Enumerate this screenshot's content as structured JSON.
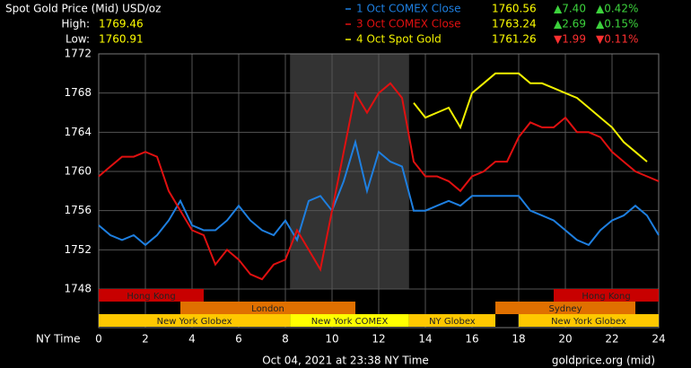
{
  "chart_data": {
    "type": "line",
    "title": "Spot Gold Price (Mid) USD/oz",
    "high_label": "High:",
    "high": "1769.46",
    "low_label": "Low:",
    "low": "1760.91",
    "x_label": "NY Time",
    "footer": "Oct 04, 2021 at 23:38 NY Time",
    "source": "goldprice.org (mid)",
    "xlim": [
      0,
      24
    ],
    "xticks": [
      0,
      2,
      4,
      6,
      8,
      10,
      12,
      14,
      16,
      18,
      20,
      22,
      24
    ],
    "ylim": [
      1748,
      1772
    ],
    "yticks": [
      1748,
      1752,
      1756,
      1760,
      1764,
      1768,
      1772
    ],
    "grid": true,
    "x": [
      0,
      0.5,
      1,
      1.5,
      2,
      2.5,
      3,
      3.5,
      4,
      4.5,
      5,
      5.5,
      6,
      6.5,
      7,
      7.5,
      8,
      8.5,
      9,
      9.5,
      10,
      10.5,
      11,
      11.5,
      12,
      12.5,
      13,
      13.5,
      14,
      14.5,
      15,
      15.5,
      16,
      16.5,
      17,
      17.5,
      18,
      18.5,
      19,
      19.5,
      20,
      20.5,
      21,
      21.5,
      22,
      22.5,
      23,
      23.5,
      24
    ],
    "series": [
      {
        "name": "1 Oct COMEX Close",
        "color": "#1e7fe0",
        "price": "1760.56",
        "change": "▲7.40",
        "percent": "▲0.42%",
        "change_color": "#3cd23c",
        "values": [
          1754.5,
          1753.5,
          1753,
          1753.5,
          1752.5,
          1753.5,
          1755,
          1757,
          1754.5,
          1754,
          1754,
          1755,
          1756.5,
          1755,
          1754,
          1753.5,
          1755,
          1753,
          1757,
          1757.5,
          1756,
          1759,
          1763,
          1758,
          1762,
          1761,
          1760.5,
          1756,
          1756,
          1756.5,
          1757,
          1756.5,
          1757.5,
          1757.5,
          1757.5,
          1757.5,
          1757.5,
          1756,
          1755.5,
          1755,
          1754,
          1753,
          1752.5,
          1754,
          1755,
          1755.5,
          1756.5,
          1755.5,
          1753.5
        ]
      },
      {
        "name": "3 Oct COMEX Close",
        "color": "#e01010",
        "price": "1763.24",
        "change": "▲2.69",
        "percent": "▲0.15%",
        "change_color": "#3cd23c",
        "values": [
          1759.5,
          1760.5,
          1761.5,
          1761.5,
          1762,
          1761.5,
          1758,
          1756,
          1754,
          1753.5,
          1750.5,
          1752,
          1751,
          1749.5,
          1749,
          1750.5,
          1751,
          1754,
          1752,
          1750,
          1756,
          1762,
          1768,
          1766,
          1768,
          1769,
          1767.5,
          1761,
          1759.5,
          1759.5,
          1759,
          1758,
          1759.5,
          1760,
          1761,
          1761,
          1763.5,
          1765,
          1764.5,
          1764.5,
          1765.5,
          1764,
          1764,
          1763.5,
          1762,
          1761,
          1760,
          1759.5,
          1759
        ]
      },
      {
        "name": "4 Oct Spot Gold",
        "color": "#f0f000",
        "price": "1761.26",
        "change": "▼1.99",
        "percent": "▼0.11%",
        "change_color": "#ff3030",
        "values": [
          null,
          null,
          null,
          null,
          null,
          null,
          null,
          null,
          null,
          null,
          null,
          null,
          null,
          null,
          null,
          null,
          null,
          null,
          null,
          null,
          null,
          null,
          null,
          null,
          null,
          null,
          null,
          1767,
          1765.5,
          1766,
          1766.5,
          1764.5,
          1768,
          1769,
          1770,
          1770,
          1770,
          1769,
          1769,
          1768.5,
          1768,
          1767.5,
          1766.5,
          1765.5,
          1764.5,
          1763,
          1762,
          1761,
          null
        ]
      }
    ],
    "sessions": [
      {
        "label": "Hong Kong",
        "row": 0,
        "start": 0,
        "end": 4.5,
        "color": "#c80000"
      },
      {
        "label": "Hong Kong",
        "row": 0,
        "start": 19.5,
        "end": 24,
        "color": "#c80000"
      },
      {
        "label": "London",
        "row": 1,
        "start": 3.5,
        "end": 11,
        "color": "#e07000"
      },
      {
        "label": "Sydney",
        "row": 1,
        "start": 17,
        "end": 23,
        "color": "#e07000"
      },
      {
        "label": "New York Globex",
        "row": 2,
        "start": 0,
        "end": 8.2,
        "color": "#ffc800"
      },
      {
        "label": "New York COMEX",
        "row": 2,
        "start": 8.2,
        "end": 13.3,
        "color": "#ffff00",
        "shade": "#333333"
      },
      {
        "label": "NY Globex",
        "row": 2,
        "start": 13.3,
        "end": 17,
        "color": "#ffc800"
      },
      {
        "label": "New York Globex",
        "row": 2,
        "start": 18,
        "end": 24,
        "color": "#ffc800"
      }
    ]
  }
}
